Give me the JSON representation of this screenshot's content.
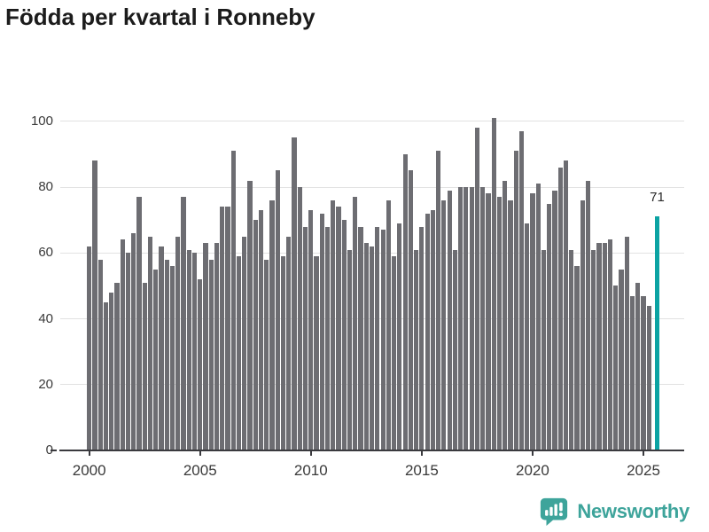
{
  "title": "Födda per kvartal i Ronneby",
  "footer": {
    "brand": "Newsworthy"
  },
  "colors": {
    "bar": "#6d6d72",
    "highlight": "#0ca3a3",
    "brand": "#3ea49b",
    "axis": "#3a3a3e",
    "grid": "#e2e2e2",
    "axis_text": "#3a3a3a",
    "title_text": "#1c1c1c"
  },
  "chart_data": {
    "type": "bar",
    "title": "Födda per kvartal i Ronneby",
    "x_unit": "quarter",
    "x_start": "2000-Q1",
    "x_end": "2025-Q3",
    "x_tick_labels": [
      "2000",
      "2005",
      "2010",
      "2015",
      "2020",
      "2025"
    ],
    "y_tick_labels": [
      "0",
      "20",
      "40",
      "60",
      "80",
      "100"
    ],
    "y_ticks": [
      0,
      20,
      40,
      60,
      80,
      100
    ],
    "ylim": [
      0,
      105
    ],
    "grid": "horizontal",
    "legend": "none",
    "values": [
      62,
      88,
      58,
      45,
      48,
      51,
      64,
      60,
      66,
      77,
      51,
      65,
      55,
      62,
      58,
      56,
      65,
      77,
      61,
      60,
      52,
      63,
      58,
      63,
      74,
      74,
      91,
      59,
      65,
      82,
      70,
      73,
      58,
      76,
      85,
      59,
      65,
      95,
      80,
      68,
      73,
      59,
      72,
      68,
      76,
      74,
      70,
      61,
      77,
      68,
      63,
      62,
      68,
      67,
      76,
      59,
      69,
      90,
      85,
      61,
      68,
      72,
      73,
      91,
      76,
      79,
      61,
      80,
      80,
      80,
      98,
      80,
      78,
      101,
      77,
      82,
      76,
      91,
      97,
      69,
      78,
      81,
      61,
      75,
      79,
      86,
      88,
      61,
      56,
      76,
      82,
      61,
      63,
      63,
      64,
      50,
      55,
      65,
      47,
      51,
      47,
      44,
      71
    ],
    "highlight": {
      "index": 102,
      "quarter": "2025-Q3",
      "value": 71,
      "label": "71"
    }
  }
}
